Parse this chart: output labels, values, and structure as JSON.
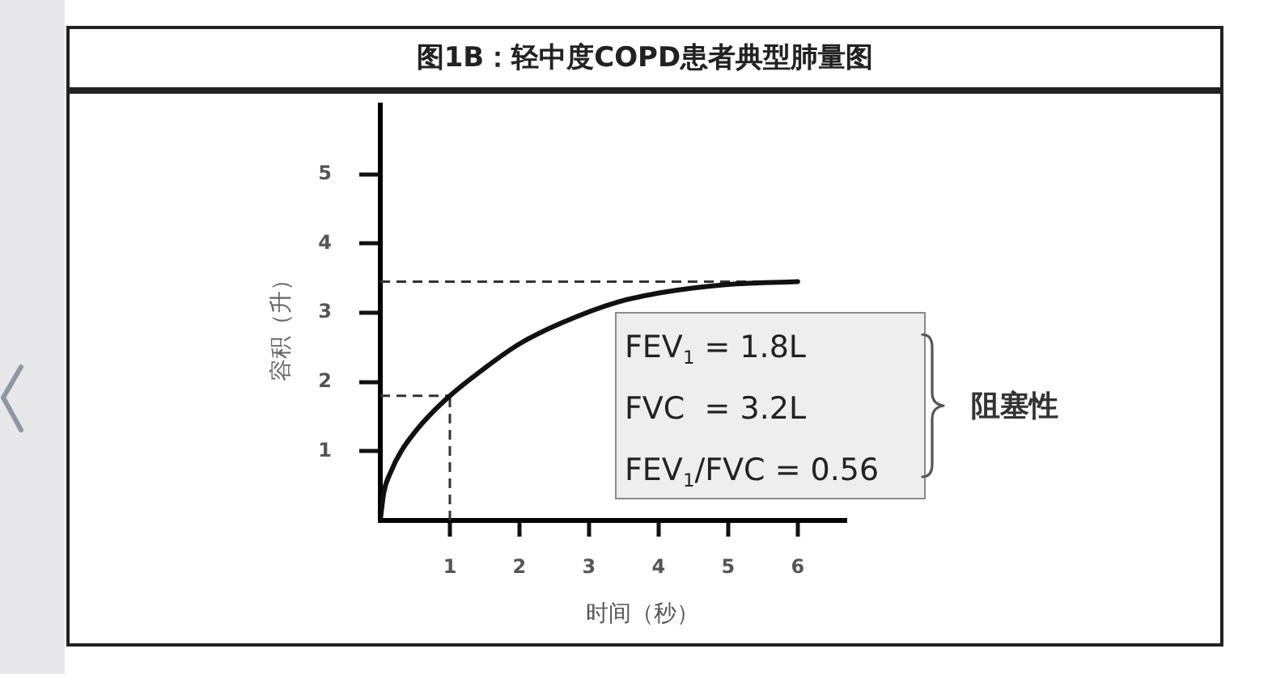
{
  "chart_data": {
    "type": "line",
    "title": "图1B：轻中度COPD患者典型肺量图",
    "xlabel": "时间（秒）",
    "ylabel": "容积（升）",
    "x": [
      0,
      0.05,
      0.15,
      0.3,
      0.6,
      1,
      1.5,
      2,
      2.6,
      3.4,
      4.1,
      4.9,
      6
    ],
    "series": [
      {
        "color": "#111111",
        "values": [
          0,
          0.4,
          0.7,
          1.0,
          1.4,
          1.8,
          2.2,
          2.55,
          2.85,
          3.15,
          3.3,
          3.4,
          3.45
        ]
      }
    ],
    "xlim": [
      0,
      6.7
    ],
    "ylim": [
      0,
      6
    ],
    "xticks": [
      1,
      2,
      3,
      4,
      5,
      6
    ],
    "yticks": [
      1,
      2,
      3,
      4,
      5
    ],
    "marker": "none",
    "line_style": "solid",
    "legend": false,
    "ref_lines": [
      {
        "axis": "y",
        "value": 1.8,
        "color": "#333333",
        "line_style": "dashed"
      },
      {
        "axis": "x",
        "value": 1,
        "color": "#333333",
        "line_style": "dashed"
      },
      {
        "axis": "y",
        "value": 3.45,
        "color": "#333333",
        "line_style": "dashed"
      }
    ],
    "annotations": [
      "FEV$_{1}$ = 1.8L",
      "FVC  = 3.2L",
      "FEV$_{1}$/FVC = 0.56",
      "阻塞性"
    ]
  }
}
